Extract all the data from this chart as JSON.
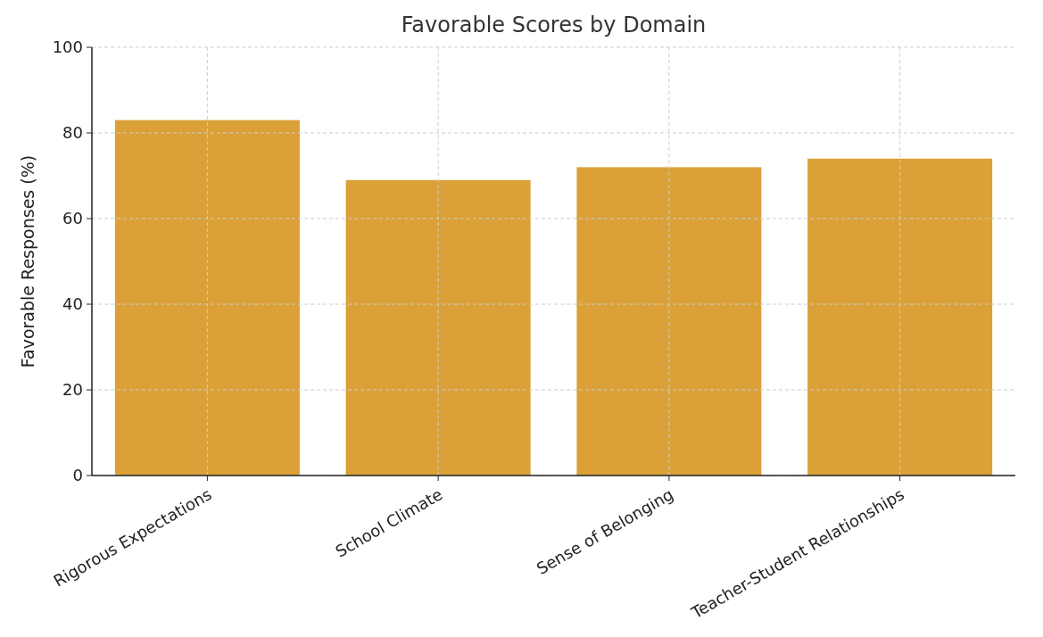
{
  "chart_data": {
    "type": "bar",
    "title": "Favorable Scores by Domain",
    "ylabel": "Favorable Responses (%)",
    "categories": [
      "Rigorous Expectations",
      "School Climate",
      "Sense of Belonging",
      "Teacher-Student Relationships"
    ],
    "values": [
      83,
      69,
      72,
      74
    ],
    "color": "#dba138",
    "ylim": [
      0,
      100
    ],
    "yticks": [
      0,
      20,
      40,
      60,
      80,
      100
    ],
    "grid": true
  }
}
